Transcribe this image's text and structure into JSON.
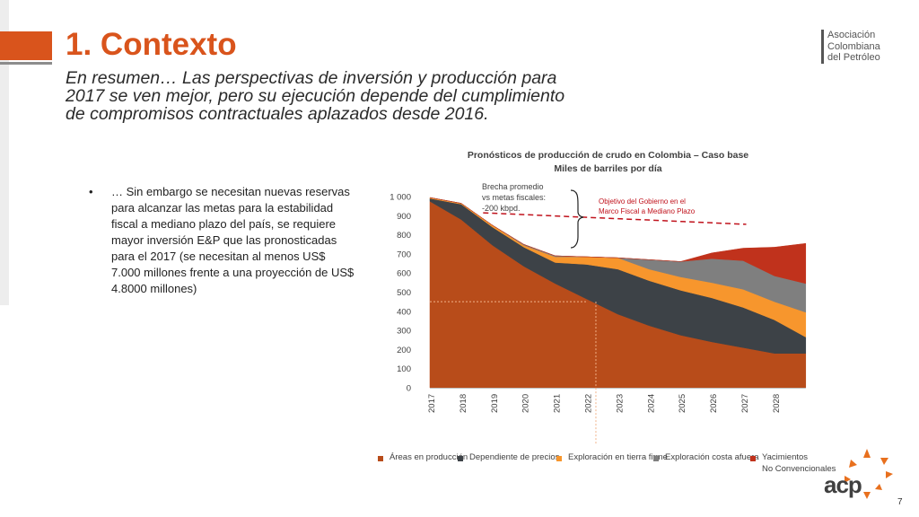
{
  "slide": {
    "title": "1. Contexto",
    "subtitle": "En resumen… Las perspectivas de inversión y producción para 2017 se ven mejor, pero su ejecución depende del cumplimiento de compromisos contractuales aplazados desde 2016.",
    "bullet_marker": "•",
    "bullet_text": "… Sin embargo se necesitan nuevas reservas para alcanzar las metas para la estabilidad fiscal a mediano plazo del país, se requiere mayor inversión E&P que las pronosticadas para el 2017 (se necesitan al menos US$ 7.000 millones frente a una proyección de US$ 4.8000 millones)",
    "page_number": "7",
    "logo_top": [
      "Asociación",
      "Colombiana",
      "del Petróleo"
    ],
    "logo_bottom": "acp",
    "accent_color": "#d9541c"
  },
  "chart_data": {
    "type": "area",
    "title": "Pronósticos de producción de crudo en Colombia – Caso base",
    "subtitle": "Miles de barriles por día",
    "x": [
      "2017",
      "2018",
      "2019",
      "2020",
      "2021",
      "2022",
      "2023",
      "2024",
      "2025",
      "2026",
      "2027",
      "2028",
      ""
    ],
    "y_ticks": [
      "0",
      "100",
      "200",
      "300",
      "400",
      "500",
      "600",
      "700",
      "800",
      "900",
      "1 000"
    ],
    "ylim": [
      0,
      1000
    ],
    "stacked": true,
    "series": [
      {
        "name": "Áreas en producción",
        "color": "#b84c1a",
        "values": [
          975,
          880,
          745,
          635,
          545,
          465,
          385,
          325,
          275,
          240,
          210,
          180,
          180
        ]
      },
      {
        "name": "Dependiente de precios",
        "color": "#3d4247",
        "values": [
          15,
          80,
          95,
          100,
          110,
          180,
          235,
          235,
          235,
          230,
          210,
          175,
          85
        ]
      },
      {
        "name": "Exploración en tierra firme",
        "color": "#f7962d",
        "values": [
          5,
          5,
          10,
          10,
          30,
          40,
          60,
          60,
          70,
          80,
          95,
          95,
          130
        ]
      },
      {
        "name": "Exploración costa afuera",
        "color": "#7f7f7f",
        "values": [
          0,
          0,
          0,
          5,
          5,
          0,
          0,
          50,
          80,
          125,
          150,
          135,
          150
        ]
      },
      {
        "name": "Yacimientos\nNo Convencionales",
        "color": "#c0321c",
        "values": [
          0,
          0,
          0,
          0,
          0,
          0,
          0,
          0,
          0,
          30,
          65,
          150,
          210
        ]
      }
    ],
    "target_line": {
      "label": "Objetivo del Gobierno en el\nMarco Fiscal a Mediano Plazo",
      "color": "#c0121c",
      "values": [
        915,
        905,
        895,
        885,
        875,
        865,
        855
      ]
    },
    "gap_annotation": "Brecha promedio\nvs metas fiscales:\n-200 kbpd.",
    "reference_level": 450,
    "legend_position": "bottom"
  }
}
